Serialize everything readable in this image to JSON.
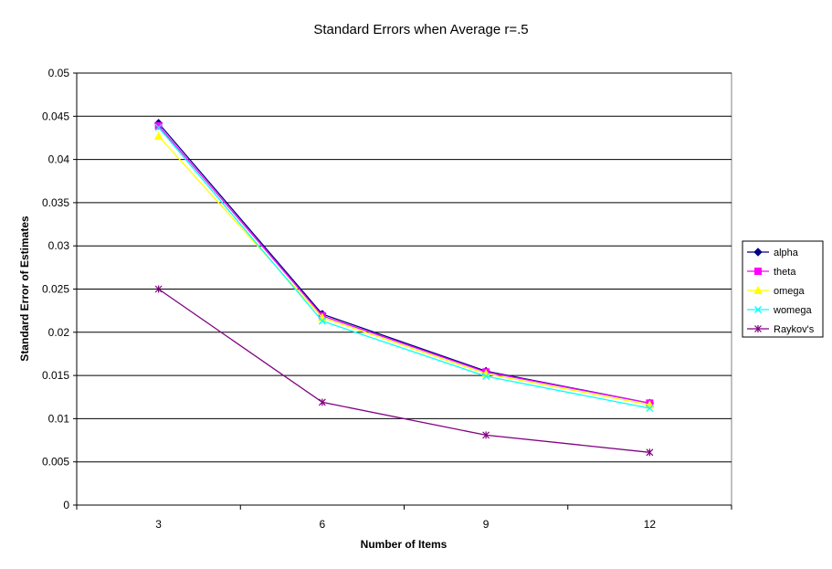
{
  "chart_data": {
    "type": "line",
    "title": "Standard Errors when Average r=.5",
    "xlabel": "Number of Items",
    "ylabel": "Standard Error of Estimates",
    "categories": [
      "3",
      "6",
      "9",
      "12"
    ],
    "ylim": [
      0,
      0.05
    ],
    "yticks": [
      "0",
      "0.005",
      "0.01",
      "0.015",
      "0.02",
      "0.025",
      "0.03",
      "0.035",
      "0.04",
      "0.045",
      "0.05"
    ],
    "grid": "horizontal",
    "legend_position": "right",
    "series": [
      {
        "name": "alpha",
        "color": "#000080",
        "marker": "diamond",
        "values": [
          0.0442,
          0.0221,
          0.0155,
          0.0118
        ]
      },
      {
        "name": "theta",
        "color": "#ff00ff",
        "marker": "square",
        "values": [
          0.0439,
          0.0219,
          0.0154,
          0.0118
        ]
      },
      {
        "name": "omega",
        "color": "#ffff00",
        "marker": "triangle",
        "values": [
          0.0427,
          0.0217,
          0.0152,
          0.0116
        ]
      },
      {
        "name": "womega",
        "color": "#00ffff",
        "marker": "x",
        "values": [
          0.0437,
          0.0213,
          0.0149,
          0.0112
        ]
      },
      {
        "name": "Raykov's",
        "color": "#800080",
        "marker": "star",
        "values": [
          0.025,
          0.0119,
          0.0081,
          0.0061
        ]
      }
    ]
  }
}
